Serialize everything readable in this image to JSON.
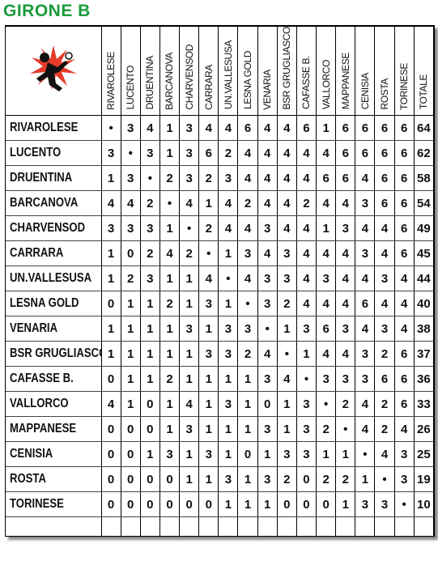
{
  "title": "GIRONE B",
  "table": {
    "columns": [
      "RIVAROLESE",
      "LUCENTO",
      "DRUENTINA",
      "BARCANOVA",
      "CHARVENSOD",
      "CARRARA",
      "UN.VALLESUSA",
      "LESNA GOLD",
      "VENARIA",
      "BSR GRUGLIASCO",
      "CAFASSE B.",
      "VALLORCO",
      "MAPPANESE",
      "CENISIA",
      "ROSTA",
      "TORINESE",
      "TOTALE"
    ],
    "rows": [
      {
        "team": "RIVAROLESE",
        "cells": [
          "•",
          3,
          4,
          1,
          3,
          4,
          4,
          6,
          4,
          4,
          6,
          1,
          6,
          6,
          6,
          6
        ],
        "total": 64
      },
      {
        "team": "LUCENTO",
        "cells": [
          3,
          "•",
          3,
          1,
          3,
          6,
          2,
          4,
          4,
          4,
          4,
          4,
          6,
          6,
          6,
          6
        ],
        "total": 62
      },
      {
        "team": "DRUENTINA",
        "cells": [
          1,
          3,
          "•",
          2,
          3,
          2,
          3,
          4,
          4,
          4,
          4,
          6,
          6,
          4,
          6,
          6
        ],
        "total": 58
      },
      {
        "team": "BARCANOVA",
        "cells": [
          4,
          4,
          2,
          "•",
          4,
          1,
          4,
          2,
          4,
          4,
          2,
          4,
          4,
          3,
          6,
          6
        ],
        "total": 54
      },
      {
        "team": "CHARVENSOD",
        "cells": [
          3,
          3,
          3,
          1,
          "•",
          2,
          4,
          4,
          3,
          4,
          4,
          1,
          3,
          4,
          4,
          6
        ],
        "total": 49
      },
      {
        "team": "CARRARA",
        "cells": [
          1,
          0,
          2,
          4,
          2,
          "•",
          1,
          3,
          4,
          3,
          4,
          4,
          4,
          3,
          4,
          6
        ],
        "total": 45
      },
      {
        "team": "UN.VALLESUSA",
        "cells": [
          1,
          2,
          3,
          1,
          1,
          4,
          "•",
          4,
          3,
          3,
          4,
          3,
          4,
          4,
          3,
          4
        ],
        "total": 44
      },
      {
        "team": "LESNA GOLD",
        "cells": [
          0,
          1,
          1,
          2,
          1,
          3,
          1,
          "•",
          3,
          2,
          4,
          4,
          4,
          6,
          4,
          4
        ],
        "total": 40
      },
      {
        "team": "VENARIA",
        "cells": [
          1,
          1,
          1,
          1,
          3,
          1,
          3,
          3,
          "•",
          1,
          3,
          6,
          3,
          4,
          3,
          4
        ],
        "total": 38
      },
      {
        "team": "BSR GRUGLIASCO",
        "cells": [
          1,
          1,
          1,
          1,
          1,
          3,
          3,
          2,
          4,
          "•",
          1,
          4,
          4,
          3,
          2,
          6
        ],
        "total": 37
      },
      {
        "team": "CAFASSE B.",
        "cells": [
          0,
          1,
          1,
          2,
          1,
          1,
          1,
          1,
          3,
          4,
          "•",
          3,
          3,
          3,
          6,
          6
        ],
        "total": 36
      },
      {
        "team": "VALLORCO",
        "cells": [
          4,
          1,
          0,
          1,
          4,
          1,
          3,
          1,
          0,
          1,
          3,
          "•",
          2,
          4,
          2,
          6
        ],
        "total": 33
      },
      {
        "team": "MAPPANESE",
        "cells": [
          0,
          0,
          0,
          1,
          3,
          1,
          1,
          1,
          3,
          1,
          3,
          2,
          "•",
          4,
          2,
          4
        ],
        "total": 26
      },
      {
        "team": "CENISIA",
        "cells": [
          0,
          0,
          1,
          3,
          1,
          3,
          1,
          0,
          1,
          3,
          3,
          1,
          1,
          "•",
          4,
          3
        ],
        "total": 25
      },
      {
        "team": "ROSTA",
        "cells": [
          0,
          0,
          0,
          0,
          1,
          1,
          3,
          1,
          3,
          2,
          0,
          2,
          2,
          1,
          "•",
          3
        ],
        "total": 19
      },
      {
        "team": "TORINESE",
        "cells": [
          0,
          0,
          0,
          0,
          0,
          0,
          1,
          1,
          1,
          0,
          0,
          0,
          1,
          3,
          3,
          "•"
        ],
        "total": 10
      }
    ]
  }
}
